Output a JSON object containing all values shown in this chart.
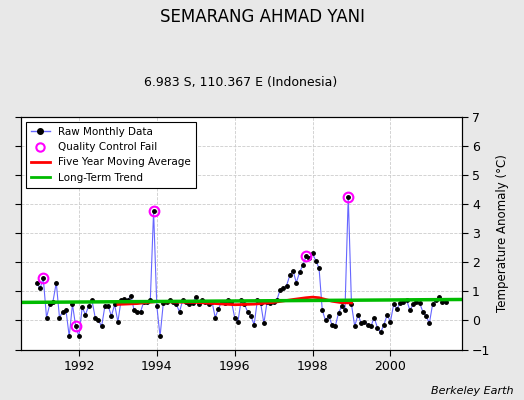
{
  "title": "SEMARANG AHMAD YANI",
  "subtitle": "6.983 S, 110.367 E (Indonesia)",
  "ylabel": "Temperature Anomaly (°C)",
  "attribution": "Berkeley Earth",
  "ylim": [
    -1,
    7
  ],
  "yticks": [
    -1,
    0,
    1,
    2,
    3,
    4,
    5,
    6,
    7
  ],
  "xlim_start": 1990.5,
  "xlim_end": 2001.83,
  "xticks": [
    1992,
    1994,
    1996,
    1998,
    2000
  ],
  "bg_color": "#e8e8e8",
  "plot_bg_color": "#ffffff",
  "line_color": "#6666ff",
  "marker_color": "#000000",
  "qc_color": "#ff00ff",
  "ma_color": "#ff0000",
  "trend_color": "#00bb00",
  "raw_data": [
    [
      1990.917,
      1.3
    ],
    [
      1991.0,
      1.1
    ],
    [
      1991.083,
      1.45
    ],
    [
      1991.167,
      0.1
    ],
    [
      1991.25,
      0.55
    ],
    [
      1991.333,
      0.65
    ],
    [
      1991.417,
      1.3
    ],
    [
      1991.5,
      0.1
    ],
    [
      1991.583,
      0.3
    ],
    [
      1991.667,
      0.35
    ],
    [
      1991.75,
      -0.55
    ],
    [
      1991.833,
      0.55
    ],
    [
      1991.917,
      -0.2
    ],
    [
      1992.0,
      -0.55
    ],
    [
      1992.083,
      0.45
    ],
    [
      1992.167,
      0.2
    ],
    [
      1992.25,
      0.5
    ],
    [
      1992.333,
      0.7
    ],
    [
      1992.417,
      0.1
    ],
    [
      1992.5,
      0.0
    ],
    [
      1992.583,
      -0.2
    ],
    [
      1992.667,
      0.5
    ],
    [
      1992.75,
      0.5
    ],
    [
      1992.833,
      0.15
    ],
    [
      1992.917,
      0.55
    ],
    [
      1993.0,
      -0.05
    ],
    [
      1993.083,
      0.7
    ],
    [
      1993.167,
      0.75
    ],
    [
      1993.25,
      0.7
    ],
    [
      1993.333,
      0.85
    ],
    [
      1993.417,
      0.35
    ],
    [
      1993.5,
      0.3
    ],
    [
      1993.583,
      0.3
    ],
    [
      1993.667,
      0.65
    ],
    [
      1993.75,
      0.65
    ],
    [
      1993.833,
      0.7
    ],
    [
      1993.917,
      3.75
    ],
    [
      1994.0,
      0.5
    ],
    [
      1994.083,
      -0.55
    ],
    [
      1994.167,
      0.6
    ],
    [
      1994.25,
      0.65
    ],
    [
      1994.333,
      0.7
    ],
    [
      1994.417,
      0.65
    ],
    [
      1994.5,
      0.55
    ],
    [
      1994.583,
      0.3
    ],
    [
      1994.667,
      0.7
    ],
    [
      1994.75,
      0.65
    ],
    [
      1994.833,
      0.55
    ],
    [
      1994.917,
      0.6
    ],
    [
      1995.0,
      0.8
    ],
    [
      1995.083,
      0.55
    ],
    [
      1995.167,
      0.7
    ],
    [
      1995.25,
      0.65
    ],
    [
      1995.333,
      0.55
    ],
    [
      1995.417,
      0.65
    ],
    [
      1995.5,
      0.1
    ],
    [
      1995.583,
      0.4
    ],
    [
      1995.667,
      0.65
    ],
    [
      1995.75,
      0.6
    ],
    [
      1995.833,
      0.7
    ],
    [
      1995.917,
      0.65
    ],
    [
      1996.0,
      0.1
    ],
    [
      1996.083,
      -0.05
    ],
    [
      1996.167,
      0.7
    ],
    [
      1996.25,
      0.55
    ],
    [
      1996.333,
      0.3
    ],
    [
      1996.417,
      0.15
    ],
    [
      1996.5,
      -0.15
    ],
    [
      1996.583,
      0.7
    ],
    [
      1996.667,
      0.6
    ],
    [
      1996.75,
      -0.1
    ],
    [
      1996.833,
      0.65
    ],
    [
      1996.917,
      0.6
    ],
    [
      1997.0,
      0.65
    ],
    [
      1997.083,
      0.7
    ],
    [
      1997.167,
      1.05
    ],
    [
      1997.25,
      1.1
    ],
    [
      1997.333,
      1.2
    ],
    [
      1997.417,
      1.55
    ],
    [
      1997.5,
      1.7
    ],
    [
      1997.583,
      1.3
    ],
    [
      1997.667,
      1.65
    ],
    [
      1997.75,
      1.9
    ],
    [
      1997.833,
      2.2
    ],
    [
      1997.917,
      2.15
    ],
    [
      1998.0,
      2.3
    ],
    [
      1998.083,
      2.05
    ],
    [
      1998.167,
      1.8
    ],
    [
      1998.25,
      0.35
    ],
    [
      1998.333,
      0.0
    ],
    [
      1998.417,
      0.15
    ],
    [
      1998.5,
      -0.15
    ],
    [
      1998.583,
      -0.2
    ],
    [
      1998.667,
      0.25
    ],
    [
      1998.75,
      0.5
    ],
    [
      1998.833,
      0.35
    ],
    [
      1998.917,
      4.25
    ],
    [
      1999.0,
      0.55
    ],
    [
      1999.083,
      -0.2
    ],
    [
      1999.167,
      0.2
    ],
    [
      1999.25,
      -0.1
    ],
    [
      1999.333,
      -0.05
    ],
    [
      1999.417,
      -0.15
    ],
    [
      1999.5,
      -0.2
    ],
    [
      1999.583,
      0.1
    ],
    [
      1999.667,
      -0.25
    ],
    [
      1999.75,
      -0.4
    ],
    [
      1999.833,
      -0.15
    ],
    [
      1999.917,
      0.2
    ],
    [
      2000.0,
      -0.05
    ],
    [
      2000.083,
      0.55
    ],
    [
      2000.167,
      0.4
    ],
    [
      2000.25,
      0.6
    ],
    [
      2000.333,
      0.65
    ],
    [
      2000.417,
      0.7
    ],
    [
      2000.5,
      0.35
    ],
    [
      2000.583,
      0.55
    ],
    [
      2000.667,
      0.65
    ],
    [
      2000.75,
      0.6
    ],
    [
      2000.833,
      0.3
    ],
    [
      2000.917,
      0.15
    ],
    [
      2001.0,
      -0.1
    ],
    [
      2001.083,
      0.55
    ],
    [
      2001.167,
      0.7
    ],
    [
      2001.25,
      0.8
    ],
    [
      2001.333,
      0.65
    ],
    [
      2001.417,
      0.65
    ]
  ],
  "qc_fails": [
    [
      1991.083,
      1.45
    ],
    [
      1991.917,
      -0.2
    ],
    [
      1993.917,
      3.75
    ],
    [
      1997.833,
      2.2
    ],
    [
      1998.917,
      4.25
    ]
  ],
  "moving_avg": [
    [
      1993.0,
      0.55
    ],
    [
      1993.5,
      0.58
    ],
    [
      1994.0,
      0.65
    ],
    [
      1994.5,
      0.63
    ],
    [
      1995.0,
      0.62
    ],
    [
      1995.5,
      0.58
    ],
    [
      1996.0,
      0.54
    ],
    [
      1996.5,
      0.56
    ],
    [
      1997.0,
      0.62
    ],
    [
      1997.5,
      0.72
    ],
    [
      1997.833,
      0.78
    ],
    [
      1998.0,
      0.8
    ],
    [
      1998.167,
      0.78
    ],
    [
      1998.333,
      0.72
    ],
    [
      1998.5,
      0.66
    ],
    [
      1998.75,
      0.61
    ],
    [
      1999.0,
      0.6
    ]
  ],
  "trend_x": [
    1990.5,
    2001.83
  ],
  "trend_y": [
    0.62,
    0.72
  ]
}
